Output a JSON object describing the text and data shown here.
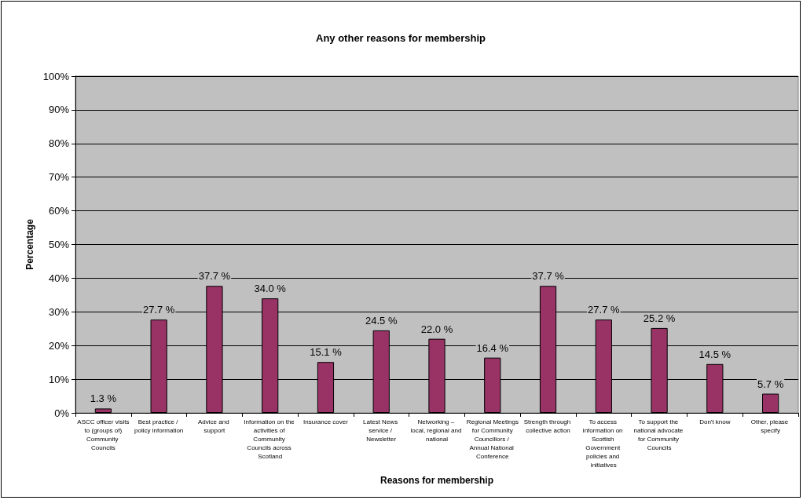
{
  "chart_data": {
    "type": "bar",
    "title": "Any other reasons for membership",
    "xlabel": "Reasons for membership",
    "ylabel": "Percentage",
    "categories": [
      "ASCC officer visits to (groups of) Community Councils",
      "Best practice / policy information",
      "Advice and support",
      "Information on the activities of Community Councils across Scotland",
      "Insurance cover",
      "Latest News service / Newsletter",
      "Networking – local, regional and national",
      "Regional Meetings for Community Councillors / Annual National Conference",
      "Strength through collective action",
      "To access information on Scottish Government policies and initiatives",
      "To support the national advocate for Community Councils",
      "Don't know",
      "Other, please specify"
    ],
    "values": [
      1.3,
      27.7,
      37.7,
      34.0,
      15.1,
      24.5,
      22.0,
      16.4,
      37.7,
      27.7,
      25.2,
      14.5,
      5.7
    ],
    "value_labels": [
      "1.3 %",
      "27.7 %",
      "37.7 %",
      "34.0 %",
      "15.1 %",
      "24.5 %",
      "22.0 %",
      "16.4 %",
      "37.7 %",
      "27.7 %",
      "25.2 %",
      "14.5 %",
      "5.7 %"
    ],
    "color": "#993366",
    "ylim": [
      0,
      100
    ],
    "yticks": [
      {
        "value": 0,
        "label": "0%"
      },
      {
        "value": 10,
        "label": "10%"
      },
      {
        "value": 20,
        "label": "20%"
      },
      {
        "value": 30,
        "label": "30%"
      },
      {
        "value": 40,
        "label": "40%"
      },
      {
        "value": 50,
        "label": "50%"
      },
      {
        "value": 60,
        "label": "60%"
      },
      {
        "value": 70,
        "label": "70%"
      },
      {
        "value": 80,
        "label": "80%"
      },
      {
        "value": 90,
        "label": "90%"
      },
      {
        "value": 100,
        "label": "100%"
      }
    ],
    "grid": "y"
  }
}
